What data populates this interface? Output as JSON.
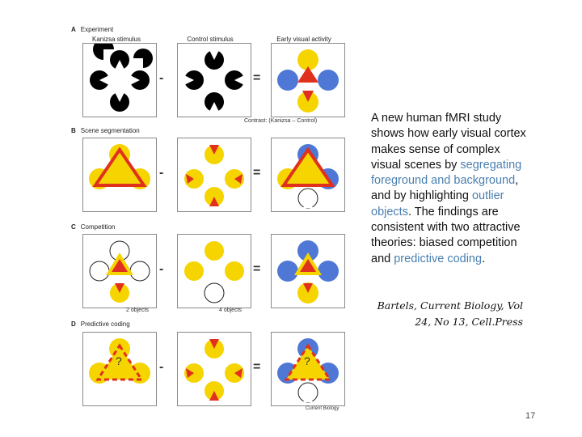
{
  "figure": {
    "sections": [
      {
        "letter": "A",
        "title": "Experiment"
      },
      {
        "letter": "B",
        "title": "Scene segmentation"
      },
      {
        "letter": "C",
        "title": "Competition"
      },
      {
        "letter": "D",
        "title": "Predictive coding"
      }
    ],
    "column_heads": [
      "Kanizsa stimulus",
      "Control stimulus",
      "Early visual activity"
    ],
    "contrast_label": "Contrast: (Kanizsa – Control)",
    "two_objects": "2 objects",
    "four_objects": "4 objects",
    "minus": "-",
    "equals": "=",
    "question_mark": "?",
    "source": "Current Biology"
  },
  "text": {
    "p1": "A new human fMRI study shows how early visual cortex makes sense of complex visual scenes by ",
    "h1": "segregating foreground and background",
    "p2": ", and by highlighting ",
    "h2": "outlier objects",
    "p3": ". The findings are consistent with two attractive theories: biased competition and ",
    "h3": "predictive coding",
    "p4": "."
  },
  "citation": {
    "line1": "Bartels, Current Biology, Vol",
    "line2": "24, No 13, Cell.Press"
  },
  "page_number": "17",
  "colors": {
    "highlight": "#4a7fb0",
    "red": "#e0301e",
    "yellow": "#f5d400",
    "blue": "#4f78d6"
  }
}
